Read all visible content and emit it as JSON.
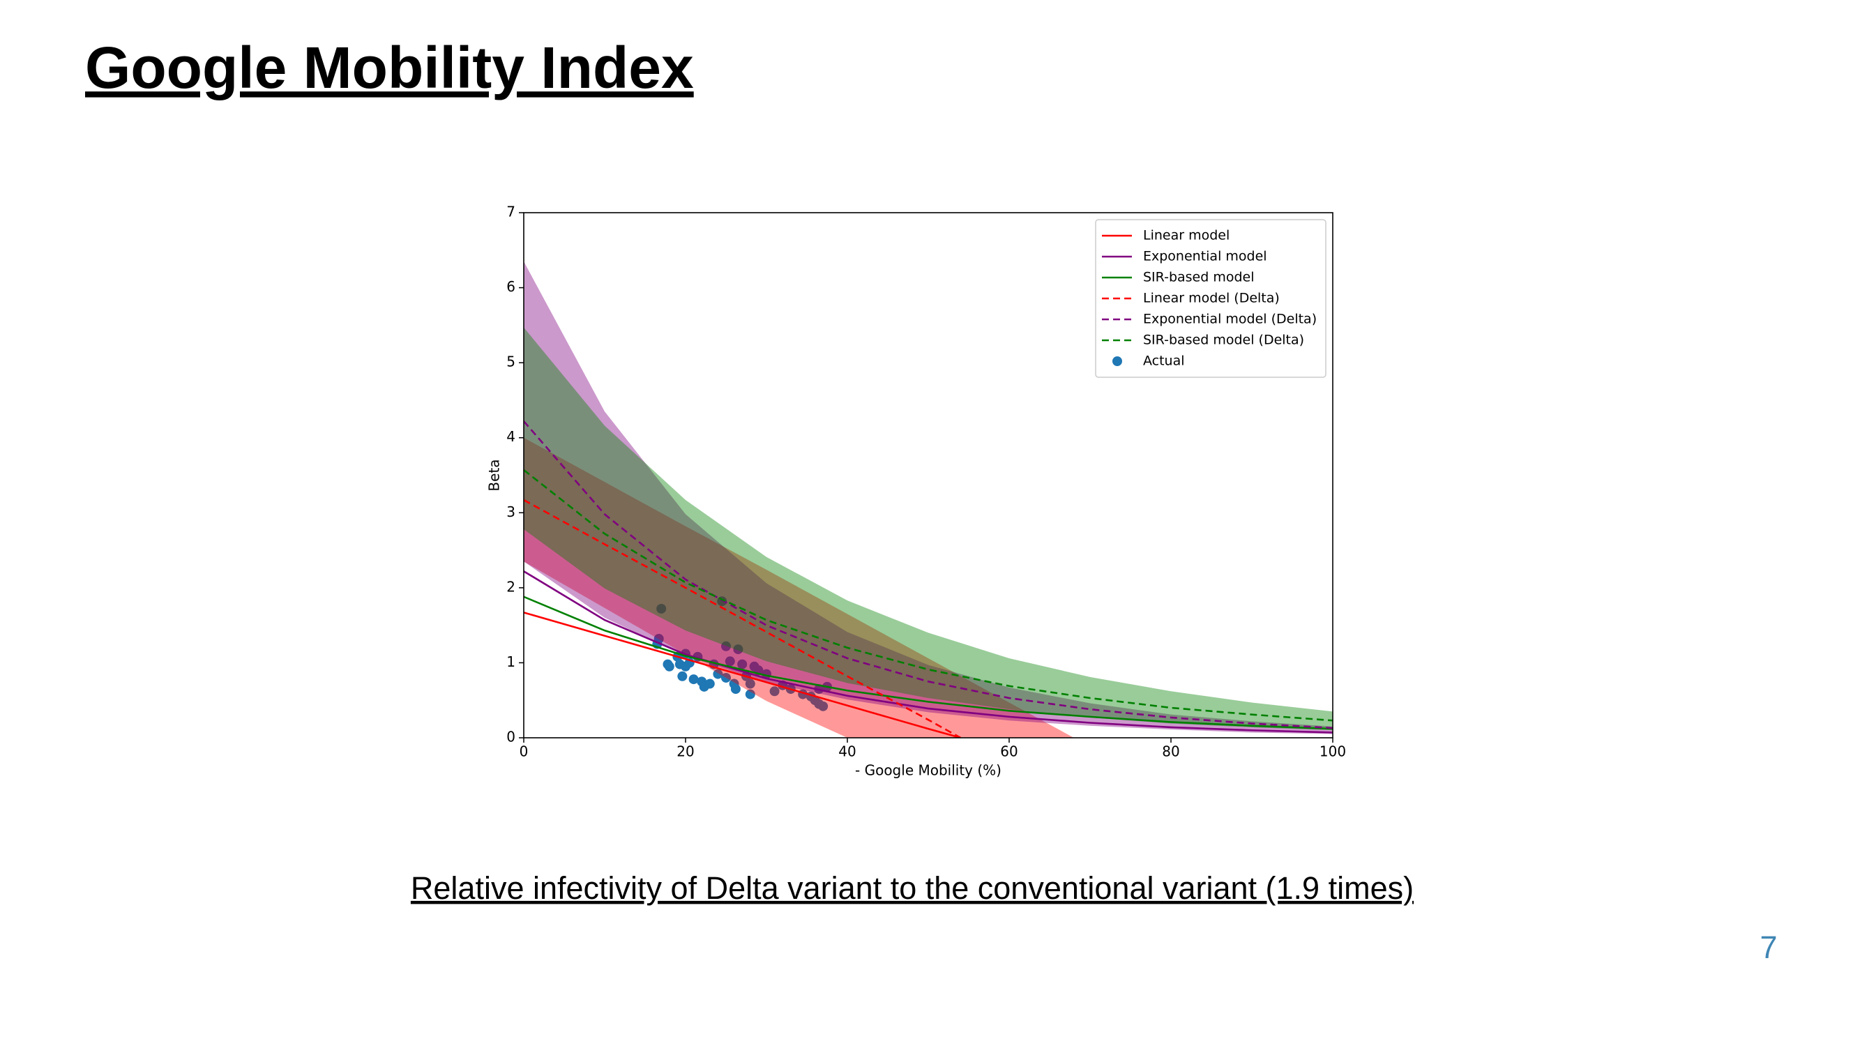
{
  "title": "Google Mobility Index",
  "caption": "Relative infectivity of Delta variant to the conventional variant (1.9 times)",
  "page_number": "7",
  "chart_data": {
    "type": "line",
    "xlabel": "- Google Mobility (%)",
    "ylabel": "Beta",
    "xlim": [
      0,
      100
    ],
    "xticks": [
      0,
      20,
      40,
      60,
      80,
      100
    ],
    "ylim": [
      0,
      7
    ],
    "yticks": [
      0,
      1,
      2,
      3,
      4,
      5,
      6,
      7
    ],
    "grid": false,
    "legend": "upper right",
    "band_alpha": 0.4,
    "bands": [
      {
        "color": "#ff0000",
        "x": [
          0,
          10,
          20,
          30,
          40,
          50,
          60,
          68
        ],
        "lower": [
          2.35,
          1.73,
          1.11,
          0.49,
          0,
          0,
          0,
          0
        ],
        "upper": [
          4.0,
          3.41,
          2.82,
          2.24,
          1.65,
          1.06,
          0.47,
          0
        ]
      },
      {
        "color": "#800080",
        "x": [
          0,
          10,
          20,
          30,
          40,
          50,
          60,
          70,
          80,
          90,
          100
        ],
        "lower": [
          2.35,
          1.6,
          1.09,
          0.74,
          0.51,
          0.34,
          0.23,
          0.16,
          0.11,
          0.07,
          0.05
        ],
        "upper": [
          6.35,
          4.35,
          2.98,
          2.06,
          1.41,
          0.97,
          0.67,
          0.46,
          0.31,
          0.22,
          0.15
        ]
      },
      {
        "color": "#008000",
        "x": [
          0,
          10,
          20,
          30,
          40,
          50,
          60,
          70,
          80,
          90,
          100
        ],
        "lower": [
          2.78,
          1.99,
          1.43,
          1.02,
          0.73,
          0.53,
          0.38,
          0.27,
          0.19,
          0.14,
          0.1
        ],
        "upper": [
          5.47,
          4.16,
          3.17,
          2.41,
          1.83,
          1.4,
          1.06,
          0.81,
          0.62,
          0.47,
          0.35
        ]
      }
    ],
    "series": [
      {
        "name": "Linear model",
        "type": "line",
        "color": "#ff0000",
        "style": "solid",
        "x": [
          0,
          10,
          20,
          30,
          40,
          50,
          54
        ],
        "values": [
          1.67,
          1.36,
          1.05,
          0.74,
          0.43,
          0.12,
          0
        ]
      },
      {
        "name": "Exponential model",
        "type": "line",
        "color": "#800080",
        "style": "solid",
        "x": [
          0,
          10,
          20,
          30,
          40,
          50,
          60,
          70,
          80,
          90,
          100
        ],
        "values": [
          2.22,
          1.57,
          1.11,
          0.79,
          0.56,
          0.39,
          0.28,
          0.2,
          0.14,
          0.1,
          0.07
        ]
      },
      {
        "name": "SIR-based model",
        "type": "line",
        "color": "#008000",
        "style": "solid",
        "x": [
          0,
          10,
          20,
          30,
          40,
          50,
          60,
          70,
          80,
          90,
          100
        ],
        "values": [
          1.88,
          1.43,
          1.09,
          0.83,
          0.63,
          0.48,
          0.36,
          0.28,
          0.21,
          0.16,
          0.12
        ]
      },
      {
        "name": "Linear model (Delta)",
        "type": "line",
        "color": "#ff0000",
        "style": "dashed",
        "x": [
          0,
          10,
          20,
          30,
          40,
          50,
          54
        ],
        "values": [
          3.17,
          2.58,
          2.0,
          1.41,
          0.82,
          0.24,
          0
        ]
      },
      {
        "name": "Exponential model (Delta)",
        "type": "line",
        "color": "#800080",
        "style": "dashed",
        "x": [
          0,
          10,
          20,
          30,
          40,
          50,
          60,
          70,
          80,
          90,
          100
        ],
        "values": [
          4.22,
          2.98,
          2.11,
          1.5,
          1.06,
          0.75,
          0.53,
          0.38,
          0.27,
          0.19,
          0.13
        ]
      },
      {
        "name": "SIR-based model (Delta)",
        "type": "line",
        "color": "#008000",
        "style": "dashed",
        "x": [
          0,
          10,
          20,
          30,
          40,
          50,
          60,
          70,
          80,
          90,
          100
        ],
        "values": [
          3.57,
          2.72,
          2.07,
          1.57,
          1.2,
          0.91,
          0.69,
          0.53,
          0.4,
          0.31,
          0.23
        ]
      },
      {
        "name": "Actual",
        "type": "scatter",
        "color": "#1f77b4",
        "x": [
          16.5,
          16.7,
          17,
          17.8,
          18,
          19,
          19.3,
          19.6,
          20,
          20,
          20.5,
          21,
          21.5,
          22,
          22.3,
          23,
          23.5,
          24,
          24.5,
          25,
          25,
          25.5,
          26,
          26.2,
          26.5,
          27,
          27.5,
          28,
          28,
          28.5,
          29,
          30,
          31,
          32,
          33,
          34.5,
          35.5,
          36,
          36.5,
          36.5,
          37,
          37.5
        ],
        "values": [
          1.25,
          1.32,
          1.72,
          0.98,
          0.95,
          1.08,
          0.98,
          0.82,
          1.12,
          0.95,
          1.0,
          0.78,
          1.08,
          0.75,
          0.68,
          0.72,
          0.98,
          0.85,
          1.82,
          1.22,
          0.8,
          1.02,
          0.72,
          0.65,
          1.18,
          0.98,
          0.82,
          0.72,
          0.58,
          0.95,
          0.9,
          0.85,
          0.62,
          0.7,
          0.65,
          0.58,
          0.55,
          0.5,
          0.65,
          0.45,
          0.42,
          0.68
        ]
      }
    ]
  }
}
